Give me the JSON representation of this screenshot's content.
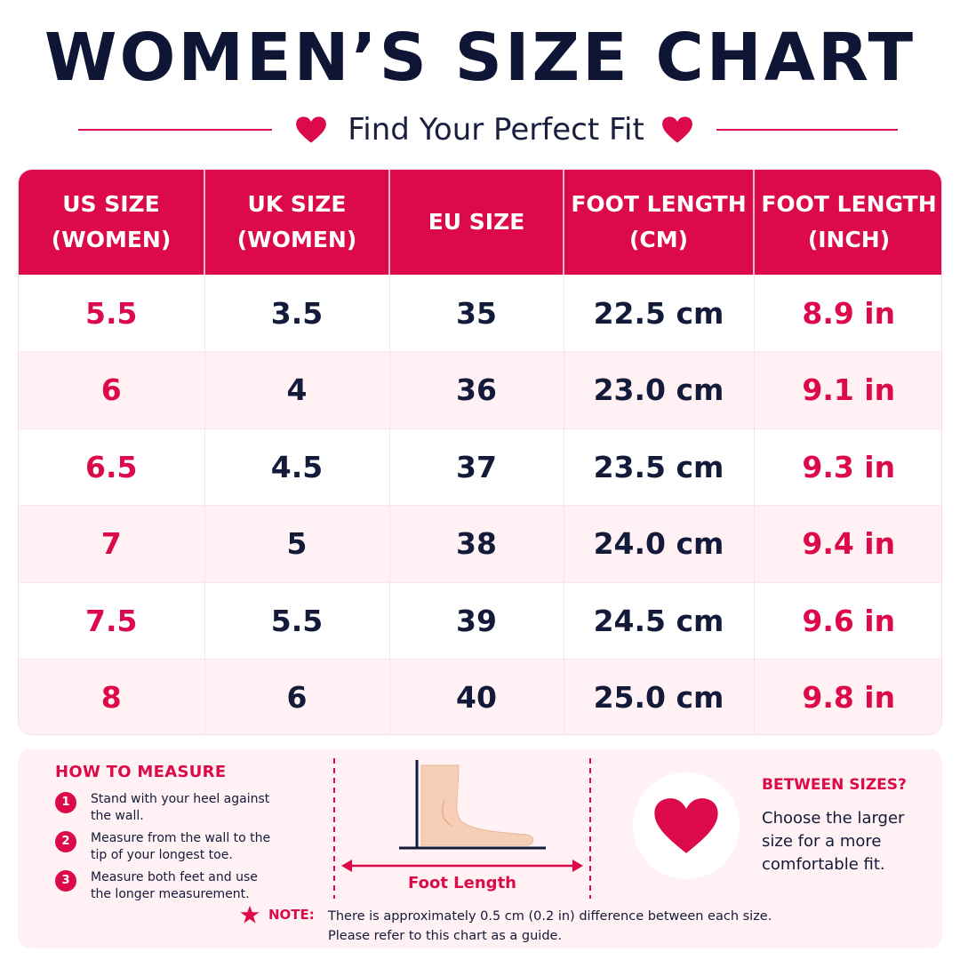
{
  "header": {
    "title": "WOMEN’S SIZE CHART",
    "subtitle": "Find Your Perfect Fit"
  },
  "colors": {
    "accent": "#dc0a4b",
    "navy": "#0f1535",
    "row_tint": "#fff1f4"
  },
  "table": {
    "columns": [
      [
        "US SIZE",
        "(WOMEN)"
      ],
      [
        "UK SIZE",
        "(WOMEN)"
      ],
      [
        "EU SIZE"
      ],
      [
        "FOOT LENGTH",
        "(CM)"
      ],
      [
        "FOOT LENGTH",
        "(INCH)"
      ]
    ],
    "rows": [
      [
        "5.5",
        "3.5",
        "35",
        "22.5 cm",
        "8.9 in"
      ],
      [
        "6",
        "4",
        "36",
        "23.0 cm",
        "9.1 in"
      ],
      [
        "6.5",
        "4.5",
        "37",
        "23.5 cm",
        "9.3 in"
      ],
      [
        "7",
        "5",
        "38",
        "24.0 cm",
        "9.4 in"
      ],
      [
        "7.5",
        "5.5",
        "39",
        "24.5 cm",
        "9.6 in"
      ],
      [
        "8",
        "6",
        "40",
        "25.0 cm",
        "9.8 in"
      ]
    ]
  },
  "how_to_measure": {
    "heading": "HOW TO MEASURE",
    "steps": [
      {
        "num": "1",
        "text": "Stand with your heel against the wall."
      },
      {
        "num": "2",
        "text": "Measure from the wall to the tip of your longest toe."
      },
      {
        "num": "3",
        "text": "Measure both feet and use the longer measurement."
      }
    ],
    "diagram_label": "Foot Length"
  },
  "between_sizes": {
    "heading": "BETWEEN SIZES?",
    "text": "Choose the larger size for a more comfortable fit."
  },
  "note": {
    "label": "NOTE:",
    "line1": "There is approximately 0.5 cm (0.2 in) difference between each size.",
    "line2": "Please refer to this chart as a guide."
  }
}
